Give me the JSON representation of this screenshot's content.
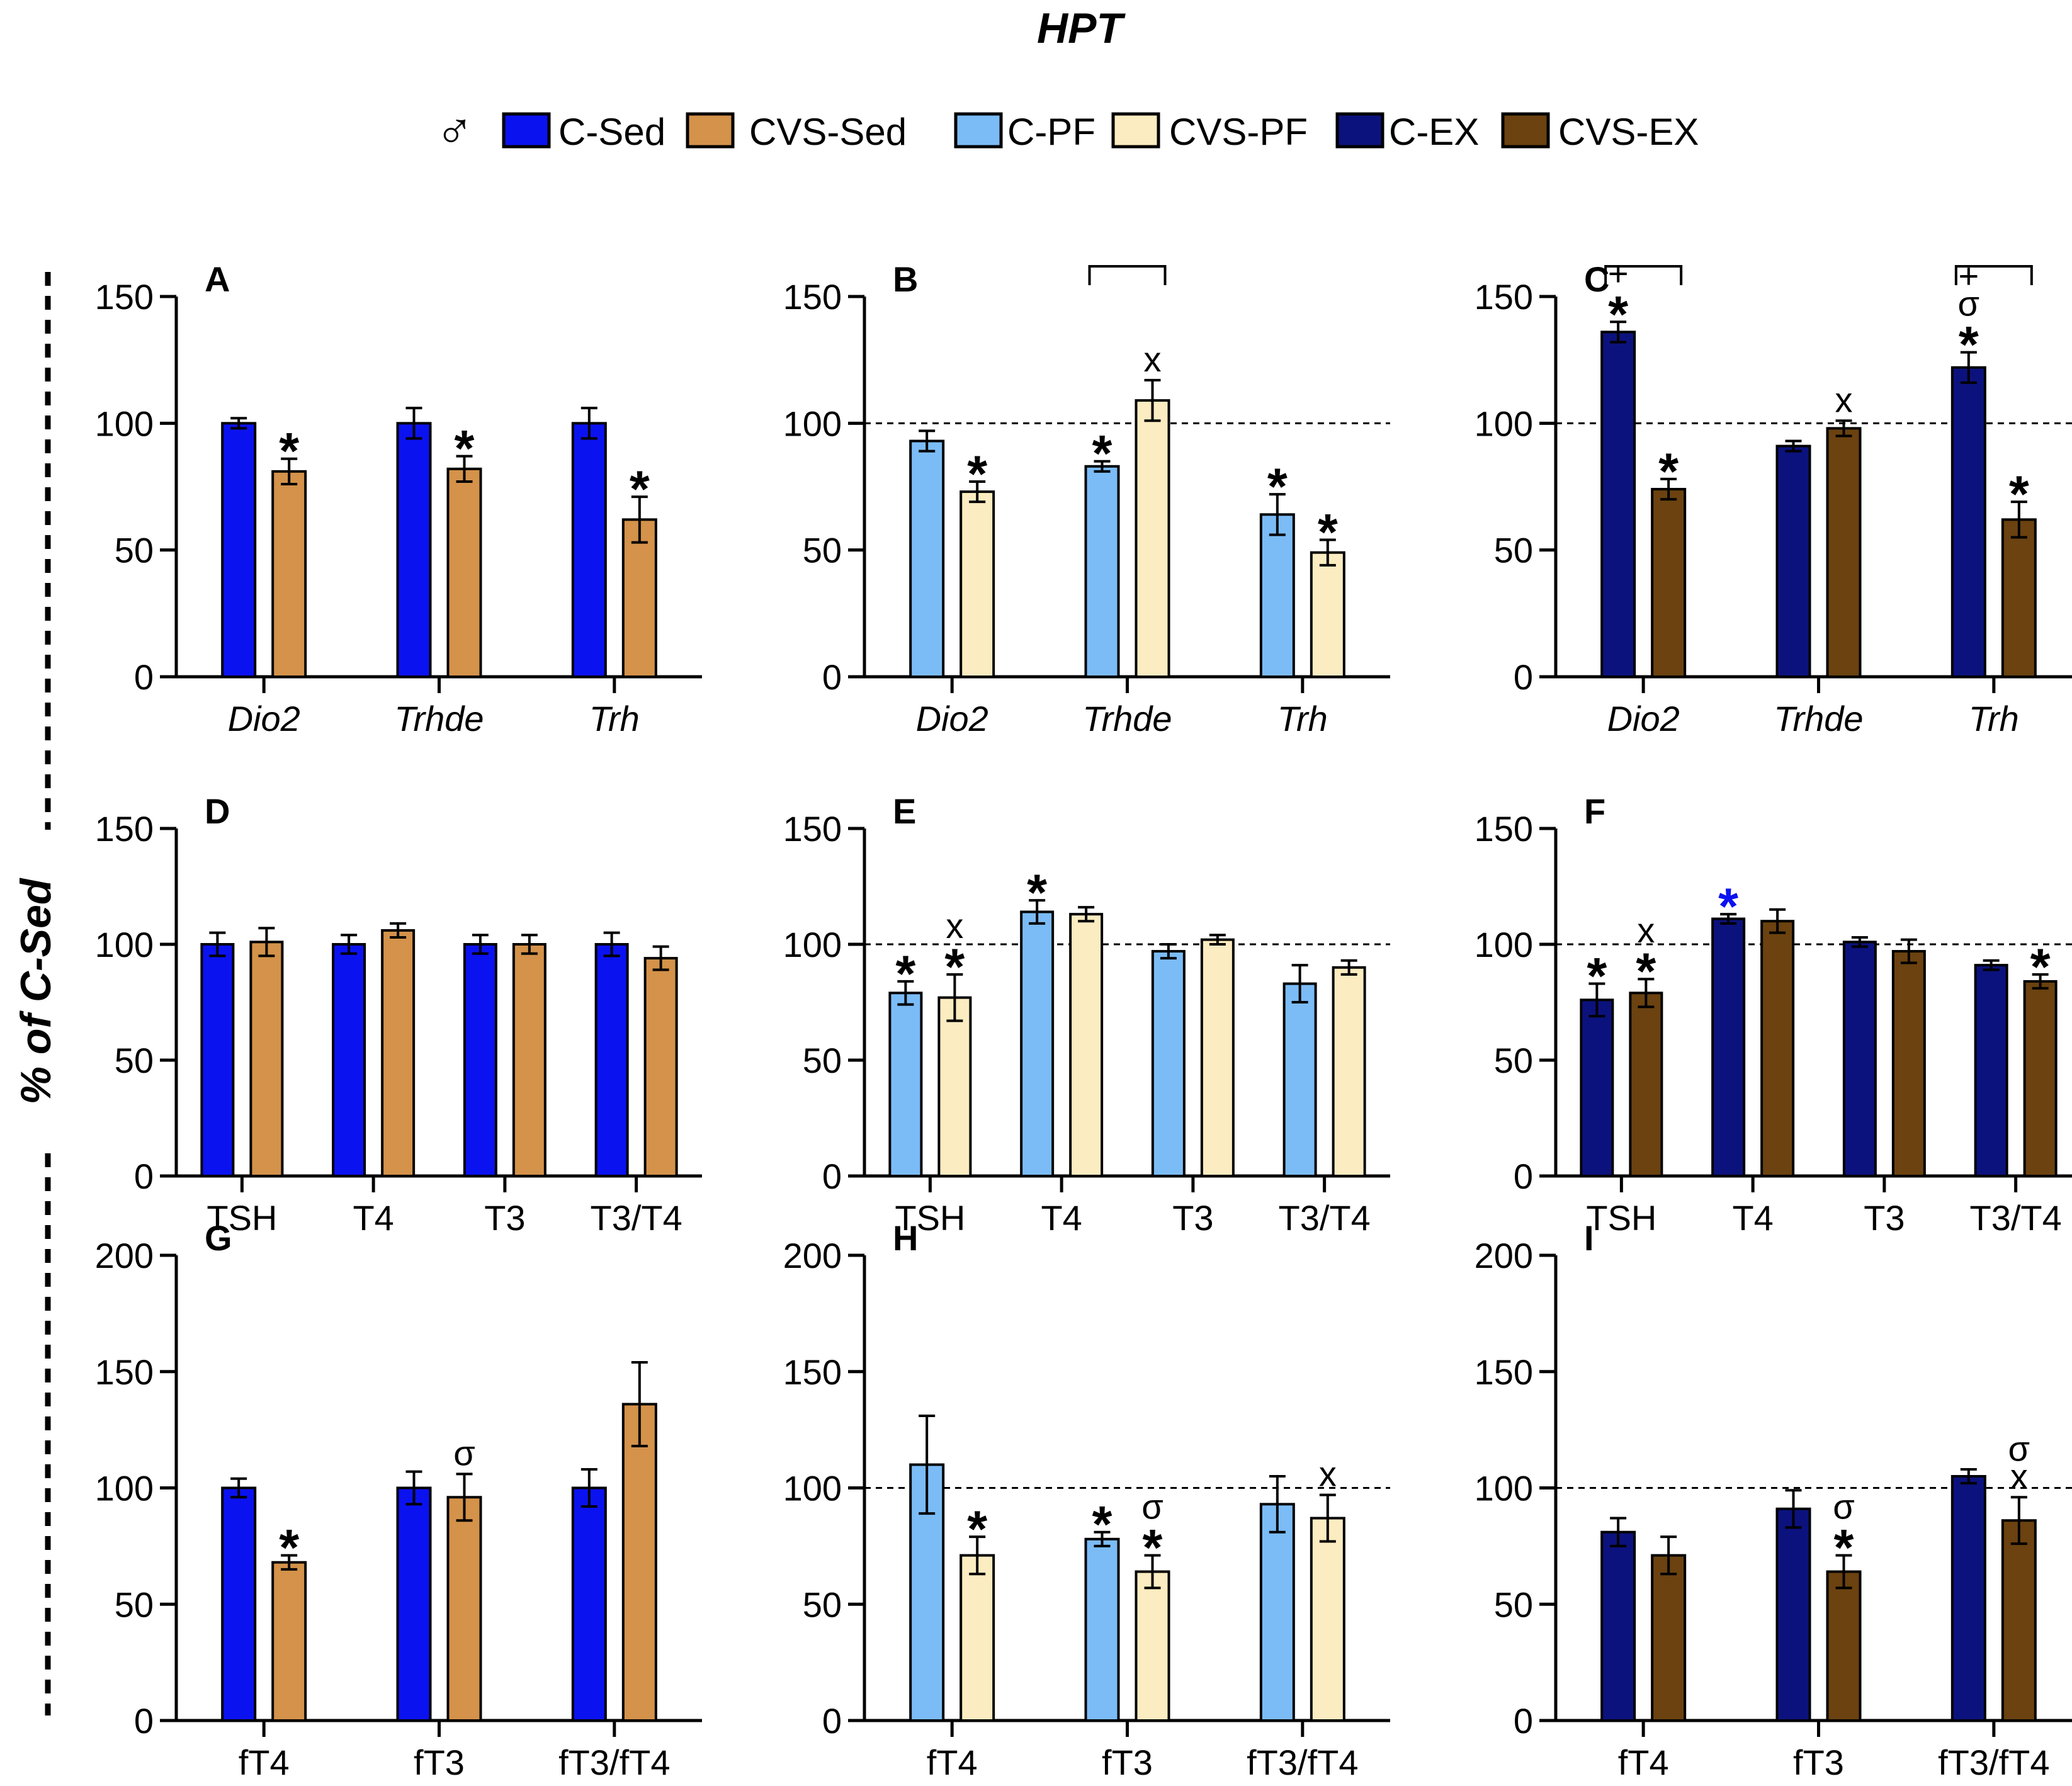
{
  "figure": {
    "title": "HPT",
    "y_axis_label": "% of C-Sed",
    "legend": {
      "sex_symbol": "♂",
      "items": [
        {
          "label": "C-Sed",
          "color": "#0b12f0"
        },
        {
          "label": "CVS-Sed",
          "color": "#d4924a"
        },
        {
          "label": "C-PF",
          "color": "#7bbcf7"
        },
        {
          "label": "CVS-PF",
          "color": "#fcecc1"
        },
        {
          "label": "C-EX",
          "color": "#0c127d"
        },
        {
          "label": "CVS-EX",
          "color": "#6b4210"
        }
      ]
    }
  },
  "chart_data": [
    {
      "panel": "A",
      "type": "bar",
      "ylim": [
        0,
        150
      ],
      "yticks": [
        "0",
        "50",
        "100",
        "150"
      ],
      "ref_line": false,
      "category_italic": true,
      "categories": [
        "Dio2",
        "Trhde",
        "Trh"
      ],
      "series": [
        {
          "name": "C-Sed",
          "color": "#0b12f0",
          "values": [
            100,
            100,
            100
          ],
          "errors": [
            2,
            6,
            6
          ],
          "marks": [
            "",
            "",
            ""
          ]
        },
        {
          "name": "CVS-Sed",
          "color": "#d4924a",
          "values": [
            81,
            82,
            62
          ],
          "errors": [
            5,
            5,
            9
          ],
          "marks": [
            "*",
            "*",
            "*"
          ]
        }
      ],
      "brackets": []
    },
    {
      "panel": "B",
      "type": "bar",
      "ylim": [
        0,
        150
      ],
      "yticks": [
        "0",
        "50",
        "100",
        "150"
      ],
      "ref_line": true,
      "category_italic": true,
      "categories": [
        "Dio2",
        "Trhde",
        "Trh"
      ],
      "series": [
        {
          "name": "C-PF",
          "color": "#7bbcf7",
          "values": [
            93,
            83,
            64
          ],
          "errors": [
            4,
            2,
            8
          ],
          "marks": [
            "",
            "*",
            "*"
          ]
        },
        {
          "name": "CVS-PF",
          "color": "#fcecc1",
          "values": [
            73,
            109,
            49
          ],
          "errors": [
            4,
            8,
            5
          ],
          "marks": [
            "*",
            "x",
            "*"
          ]
        }
      ],
      "brackets": [
        1
      ]
    },
    {
      "panel": "C",
      "type": "bar",
      "ylim": [
        0,
        150
      ],
      "yticks": [
        "0",
        "50",
        "100",
        "150"
      ],
      "ref_line": true,
      "category_italic": true,
      "categories": [
        "Dio2",
        "Trhde",
        "Trh"
      ],
      "series": [
        {
          "name": "C-EX",
          "color": "#0c127d",
          "values": [
            136,
            91,
            122
          ],
          "errors": [
            4,
            2,
            6
          ],
          "marks": [
            "+\n*",
            "",
            "+\nσ\n*"
          ]
        },
        {
          "name": "CVS-EX",
          "color": "#6b4210",
          "values": [
            74,
            98,
            62
          ],
          "errors": [
            4,
            3,
            7
          ],
          "marks": [
            "*",
            "x",
            "*"
          ]
        }
      ],
      "brackets": [
        0,
        2
      ]
    },
    {
      "panel": "D",
      "type": "bar",
      "ylim": [
        0,
        150
      ],
      "yticks": [
        "0",
        "50",
        "100",
        "150"
      ],
      "ref_line": false,
      "category_italic": false,
      "categories": [
        "TSH",
        "T4",
        "T3",
        "T3/T4"
      ],
      "series": [
        {
          "name": "C-Sed",
          "color": "#0b12f0",
          "values": [
            100,
            100,
            100,
            100
          ],
          "errors": [
            5,
            4,
            4,
            5
          ],
          "marks": [
            "",
            "",
            "",
            ""
          ]
        },
        {
          "name": "CVS-Sed",
          "color": "#d4924a",
          "values": [
            101,
            106,
            100,
            94
          ],
          "errors": [
            6,
            3,
            4,
            5
          ],
          "marks": [
            "",
            "",
            "",
            ""
          ]
        }
      ],
      "brackets": []
    },
    {
      "panel": "E",
      "type": "bar",
      "ylim": [
        0,
        150
      ],
      "yticks": [
        "0",
        "50",
        "100",
        "150"
      ],
      "ref_line": true,
      "category_italic": false,
      "categories": [
        "TSH",
        "T4",
        "T3",
        "T3/T4"
      ],
      "series": [
        {
          "name": "C-PF",
          "color": "#7bbcf7",
          "values": [
            79,
            114,
            97,
            83
          ],
          "errors": [
            5,
            5,
            3,
            8
          ],
          "marks": [
            "*",
            "*",
            "",
            ""
          ]
        },
        {
          "name": "CVS-PF",
          "color": "#fcecc1",
          "values": [
            77,
            113,
            102,
            90
          ],
          "errors": [
            10,
            3,
            2,
            3
          ],
          "marks": [
            "x\n*",
            "",
            "",
            ""
          ]
        }
      ],
      "brackets": []
    },
    {
      "panel": "F",
      "type": "bar",
      "ylim": [
        0,
        150
      ],
      "yticks": [
        "0",
        "50",
        "100",
        "150"
      ],
      "ref_line": true,
      "category_italic": false,
      "categories": [
        "TSH",
        "T4",
        "T3",
        "T3/T4"
      ],
      "series": [
        {
          "name": "C-EX",
          "color": "#0c127d",
          "values": [
            76,
            111,
            101,
            91
          ],
          "errors": [
            7,
            2,
            2,
            2
          ],
          "marks": [
            "*",
            "*",
            "",
            ""
          ]
        },
        {
          "name": "CVS-EX",
          "color": "#6b4210",
          "values": [
            79,
            110,
            97,
            84
          ],
          "errors": [
            6,
            5,
            5,
            3
          ],
          "marks": [
            "x\n*",
            "",
            "",
            "*"
          ]
        }
      ],
      "brackets": [],
      "mark_colors": {
        "C-EX": [
          "#000000",
          "#0b12f0",
          "#000000",
          "#000000"
        ]
      }
    },
    {
      "panel": "G",
      "type": "bar",
      "ylim": [
        0,
        200
      ],
      "yticks": [
        "0",
        "50",
        "100",
        "150",
        "200"
      ],
      "ref_line": false,
      "category_italic": false,
      "categories": [
        "fT4",
        "fT3",
        "fT3/fT4"
      ],
      "series": [
        {
          "name": "C-Sed",
          "color": "#0b12f0",
          "values": [
            100,
            100,
            100
          ],
          "errors": [
            4,
            7,
            8
          ],
          "marks": [
            "",
            "",
            ""
          ]
        },
        {
          "name": "CVS-Sed",
          "color": "#d4924a",
          "values": [
            68,
            96,
            136
          ],
          "errors": [
            3,
            10,
            18
          ],
          "marks": [
            "*",
            "σ",
            ""
          ]
        }
      ],
      "brackets": []
    },
    {
      "panel": "H",
      "type": "bar",
      "ylim": [
        0,
        200
      ],
      "yticks": [
        "0",
        "50",
        "100",
        "150",
        "200"
      ],
      "ref_line": true,
      "category_italic": false,
      "categories": [
        "fT4",
        "fT3",
        "fT3/fT4"
      ],
      "series": [
        {
          "name": "C-PF",
          "color": "#7bbcf7",
          "values": [
            110,
            78,
            93
          ],
          "errors": [
            21,
            3,
            12
          ],
          "marks": [
            "",
            "*",
            ""
          ]
        },
        {
          "name": "CVS-PF",
          "color": "#fcecc1",
          "values": [
            71,
            64,
            87
          ],
          "errors": [
            8,
            7,
            10
          ],
          "marks": [
            "*",
            "σ\n*",
            "x"
          ]
        }
      ],
      "brackets": []
    },
    {
      "panel": "I",
      "type": "bar",
      "ylim": [
        0,
        200
      ],
      "yticks": [
        "0",
        "50",
        "100",
        "150",
        "200"
      ],
      "ref_line": true,
      "category_italic": false,
      "categories": [
        "fT4",
        "fT3",
        "fT3/fT4"
      ],
      "series": [
        {
          "name": "C-EX",
          "color": "#0c127d",
          "values": [
            81,
            91,
            105
          ],
          "errors": [
            6,
            8,
            3
          ],
          "marks": [
            "",
            "",
            ""
          ]
        },
        {
          "name": "CVS-EX",
          "color": "#6b4210",
          "values": [
            71,
            64,
            86
          ],
          "errors": [
            8,
            7,
            10
          ],
          "marks": [
            "",
            "σ\n*",
            "σ\nx"
          ]
        }
      ],
      "brackets": []
    }
  ]
}
